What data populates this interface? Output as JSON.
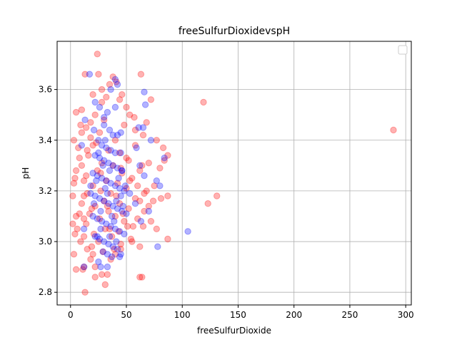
{
  "chart_data": {
    "type": "scatter",
    "title": "freeSulfurDioxidevspH",
    "xlabel": "freeSulfurDioxide",
    "ylabel": "pH",
    "xlim": [
      -12,
      305
    ],
    "ylim": [
      2.75,
      3.79
    ],
    "xticks": [
      0,
      50,
      100,
      150,
      200,
      250,
      300
    ],
    "xtick_labels": [
      "0",
      "50",
      "100",
      "150",
      "200",
      "250",
      "300"
    ],
    "yticks": [
      2.8,
      3.0,
      3.2,
      3.4,
      3.6
    ],
    "ytick_labels": [
      "2.8",
      "3.0",
      "3.2",
      "3.4",
      "3.6"
    ],
    "grid": true,
    "legend": "top-right",
    "series": [
      {
        "color": "#ff0000",
        "alpha": 0.3,
        "points": [
          [
            24,
            3.74
          ],
          [
            13,
            3.66
          ],
          [
            25,
            3.66
          ],
          [
            38,
            3.65
          ],
          [
            63,
            3.66
          ],
          [
            20,
            3.58
          ],
          [
            46,
            3.58
          ],
          [
            72,
            3.56
          ],
          [
            35,
            3.62
          ],
          [
            28,
            3.55
          ],
          [
            119,
            3.55
          ],
          [
            53,
            3.5
          ],
          [
            57,
            3.49
          ],
          [
            10,
            3.52
          ],
          [
            5,
            3.51
          ],
          [
            68,
            3.47
          ],
          [
            14,
            3.45
          ],
          [
            9,
            3.46
          ],
          [
            18,
            3.41
          ],
          [
            3,
            3.4
          ],
          [
            65,
            3.42
          ],
          [
            77,
            3.4
          ],
          [
            83,
            3.37
          ],
          [
            7,
            3.37
          ],
          [
            87,
            3.34
          ],
          [
            84,
            3.32
          ],
          [
            70,
            3.31
          ],
          [
            50,
            3.33
          ],
          [
            10,
            3.3
          ],
          [
            5,
            3.28
          ],
          [
            62,
            3.28
          ],
          [
            80,
            3.29
          ],
          [
            4,
            3.25
          ],
          [
            12,
            3.24
          ],
          [
            3,
            3.23
          ],
          [
            60,
            3.22
          ],
          [
            75,
            3.22
          ],
          [
            68,
            3.2
          ],
          [
            15,
            3.19
          ],
          [
            2,
            3.18
          ],
          [
            87,
            3.18
          ],
          [
            81,
            3.17
          ],
          [
            131,
            3.18
          ],
          [
            123,
            3.15
          ],
          [
            74,
            3.16
          ],
          [
            70,
            3.14
          ],
          [
            66,
            3.12
          ],
          [
            8,
            3.11
          ],
          [
            5,
            3.1
          ],
          [
            2,
            3.07
          ],
          [
            72,
            3.08
          ],
          [
            65,
            3.06
          ],
          [
            77,
            3.05
          ],
          [
            6,
            3.05
          ],
          [
            4,
            3.03
          ],
          [
            87,
            3.01
          ],
          [
            12,
            3.02
          ],
          [
            9,
            3.0
          ],
          [
            55,
            3.0
          ],
          [
            62,
            2.98
          ],
          [
            15,
            2.97
          ],
          [
            3,
            2.95
          ],
          [
            20,
            2.95
          ],
          [
            18,
            2.93
          ],
          [
            12,
            2.9
          ],
          [
            5,
            2.89
          ],
          [
            11,
            2.89
          ],
          [
            22,
            2.9
          ],
          [
            28,
            2.87
          ],
          [
            33,
            2.87
          ],
          [
            62,
            2.86
          ],
          [
            64,
            2.86
          ],
          [
            22,
            2.86
          ],
          [
            31,
            2.83
          ],
          [
            13,
            2.8
          ],
          [
            40,
            2.95
          ],
          [
            45,
            2.97
          ],
          [
            36,
            2.93
          ],
          [
            28,
            3.6
          ],
          [
            32,
            3.57
          ],
          [
            41,
            3.63
          ],
          [
            44,
            3.56
          ],
          [
            50,
            3.53
          ],
          [
            22,
            3.5
          ],
          [
            30,
            3.48
          ],
          [
            48,
            3.46
          ],
          [
            18,
            3.47
          ],
          [
            58,
            3.44
          ],
          [
            26,
            3.43
          ],
          [
            40,
            3.4
          ],
          [
            20,
            3.38
          ],
          [
            34,
            3.36
          ],
          [
            44,
            3.35
          ],
          [
            16,
            3.34
          ],
          [
            52,
            3.32
          ],
          [
            28,
            3.31
          ],
          [
            38,
            3.3
          ],
          [
            24,
            3.28
          ],
          [
            46,
            3.27
          ],
          [
            14,
            3.26
          ],
          [
            55,
            3.25
          ],
          [
            32,
            3.24
          ],
          [
            42,
            3.23
          ],
          [
            20,
            3.22
          ],
          [
            50,
            3.21
          ],
          [
            27,
            3.2
          ],
          [
            36,
            3.19
          ],
          [
            12,
            3.18
          ],
          [
            58,
            3.17
          ],
          [
            30,
            3.16
          ],
          [
            44,
            3.15
          ],
          [
            22,
            3.14
          ],
          [
            52,
            3.13
          ],
          [
            34,
            3.12
          ],
          [
            17,
            3.11
          ],
          [
            40,
            3.1
          ],
          [
            26,
            3.09
          ],
          [
            48,
            3.08
          ],
          [
            14,
            3.07
          ],
          [
            56,
            3.06
          ],
          [
            31,
            3.05
          ],
          [
            43,
            3.04
          ],
          [
            21,
            3.03
          ],
          [
            37,
            3.02
          ],
          [
            54,
            3.01
          ],
          [
            25,
            3.0
          ],
          [
            45,
            2.99
          ],
          [
            19,
            2.98
          ],
          [
            39,
            2.97
          ],
          [
            29,
            2.96
          ],
          [
            8,
            3.33
          ],
          [
            10,
            3.15
          ],
          [
            12,
            3.09
          ],
          [
            15,
            3.36
          ],
          [
            58,
            3.38
          ],
          [
            60,
            3.09
          ],
          [
            62,
            3.16
          ],
          [
            64,
            3.3
          ],
          [
            66,
            3.19
          ],
          [
            10,
            3.43
          ],
          [
            23,
            3.39
          ],
          [
            27,
            3.27
          ],
          [
            33,
            3.14
          ],
          [
            47,
            3.11
          ],
          [
            53,
            3.24
          ],
          [
            35,
            3.05
          ],
          [
            41,
            3.18
          ],
          [
            19,
            3.13
          ],
          [
            45,
            3.29
          ],
          [
            51,
            3.06
          ]
        ]
      },
      {
        "color": "#0000ff",
        "alpha": 0.3,
        "points": [
          [
            17,
            3.66
          ],
          [
            40,
            3.64
          ],
          [
            42,
            3.62
          ],
          [
            36,
            3.6
          ],
          [
            66,
            3.59
          ],
          [
            22,
            3.55
          ],
          [
            26,
            3.53
          ],
          [
            67,
            3.54
          ],
          [
            40,
            3.53
          ],
          [
            33,
            3.51
          ],
          [
            30,
            3.49
          ],
          [
            13,
            3.48
          ],
          [
            61,
            3.45
          ],
          [
            65,
            3.45
          ],
          [
            21,
            3.44
          ],
          [
            45,
            3.43
          ],
          [
            72,
            3.4
          ],
          [
            59,
            3.37
          ],
          [
            84,
            3.33
          ],
          [
            10,
            3.38
          ],
          [
            62,
            3.3
          ],
          [
            66,
            3.26
          ],
          [
            46,
            3.28
          ],
          [
            77,
            3.24
          ],
          [
            80,
            3.22
          ],
          [
            18,
            3.22
          ],
          [
            53,
            3.19
          ],
          [
            58,
            3.15
          ],
          [
            70,
            3.12
          ],
          [
            63,
            3.08
          ],
          [
            105,
            3.04
          ],
          [
            12,
            3.05
          ],
          [
            24,
            3.02
          ],
          [
            78,
            2.98
          ],
          [
            45,
            2.95
          ],
          [
            44,
            2.94
          ],
          [
            27,
            2.9
          ],
          [
            33,
            2.9
          ],
          [
            25,
            2.92
          ],
          [
            12,
            2.9
          ],
          [
            30,
            3.46
          ],
          [
            35,
            3.44
          ],
          [
            38,
            3.42
          ],
          [
            42,
            3.42
          ],
          [
            25,
            3.4
          ],
          [
            28,
            3.38
          ],
          [
            32,
            3.37
          ],
          [
            36,
            3.36
          ],
          [
            40,
            3.35
          ],
          [
            22,
            3.34
          ],
          [
            26,
            3.33
          ],
          [
            30,
            3.32
          ],
          [
            34,
            3.31
          ],
          [
            38,
            3.3
          ],
          [
            42,
            3.29
          ],
          [
            46,
            3.28
          ],
          [
            20,
            3.27
          ],
          [
            24,
            3.26
          ],
          [
            28,
            3.25
          ],
          [
            32,
            3.24
          ],
          [
            36,
            3.23
          ],
          [
            40,
            3.22
          ],
          [
            44,
            3.21
          ],
          [
            48,
            3.2
          ],
          [
            18,
            3.19
          ],
          [
            22,
            3.18
          ],
          [
            26,
            3.17
          ],
          [
            30,
            3.16
          ],
          [
            34,
            3.15
          ],
          [
            38,
            3.14
          ],
          [
            42,
            3.13
          ],
          [
            46,
            3.12
          ],
          [
            50,
            3.11
          ],
          [
            20,
            3.1
          ],
          [
            24,
            3.09
          ],
          [
            28,
            3.08
          ],
          [
            32,
            3.07
          ],
          [
            36,
            3.06
          ],
          [
            40,
            3.05
          ],
          [
            44,
            3.04
          ],
          [
            48,
            3.03
          ],
          [
            22,
            3.02
          ],
          [
            26,
            3.01
          ],
          [
            30,
            3.0
          ],
          [
            34,
            2.99
          ],
          [
            38,
            2.98
          ],
          [
            42,
            2.97
          ],
          [
            29,
            2.96
          ],
          [
            33,
            2.95
          ],
          [
            37,
            2.94
          ],
          [
            25,
            3.35
          ],
          [
            35,
            3.28
          ],
          [
            45,
            3.18
          ],
          [
            27,
            3.12
          ],
          [
            39,
            3.08
          ],
          [
            31,
            3.21
          ],
          [
            43,
            3.25
          ],
          [
            29,
            3.3
          ],
          [
            41,
            3.16
          ],
          [
            23,
            3.24
          ],
          [
            33,
            3.19
          ],
          [
            47,
            3.14
          ],
          [
            37,
            3.1
          ],
          [
            21,
            3.15
          ],
          [
            49,
            3.22
          ],
          [
            35,
            3.02
          ],
          [
            27,
            3.05
          ],
          [
            41,
            3.0
          ],
          [
            31,
            3.4
          ],
          [
            45,
            3.35
          ]
        ]
      },
      {
        "color": "#ff0000",
        "alpha": 0.3,
        "points": [
          [
            289,
            3.44
          ]
        ]
      }
    ]
  }
}
